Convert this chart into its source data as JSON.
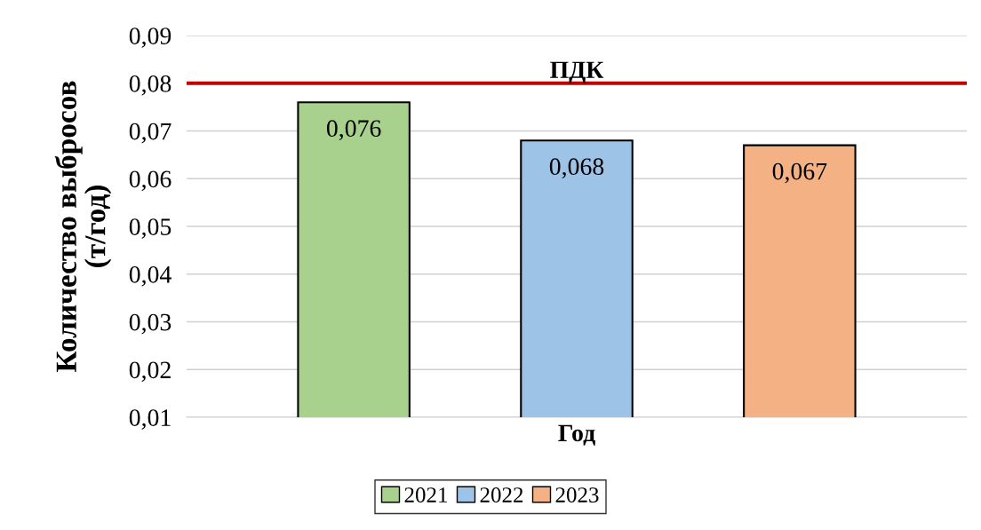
{
  "chart_data": {
    "type": "bar",
    "xlabel": "Год",
    "ylabel": "Количество выбросов\n(т/год)",
    "categories": [
      null
    ],
    "series": [
      {
        "name": "2021",
        "color": "#a9d18e",
        "values": [
          0.076
        ],
        "value_labels": [
          "0,076"
        ]
      },
      {
        "name": "2022",
        "color": "#9dc3e6",
        "values": [
          0.068
        ],
        "value_labels": [
          "0,068"
        ]
      },
      {
        "name": "2023",
        "color": "#f4b183",
        "values": [
          0.067
        ],
        "value_labels": [
          "0,067"
        ]
      }
    ],
    "ylim": [
      0.01,
      0.09
    ],
    "yticks": [
      {
        "value": 0.01,
        "label": "0,01"
      },
      {
        "value": 0.02,
        "label": "0,02"
      },
      {
        "value": 0.03,
        "label": "0,03"
      },
      {
        "value": 0.04,
        "label": "0,04"
      },
      {
        "value": 0.05,
        "label": "0,05"
      },
      {
        "value": 0.06,
        "label": "0,06"
      },
      {
        "value": 0.07,
        "label": "0,07"
      },
      {
        "value": 0.08,
        "label": "0,08"
      },
      {
        "value": 0.09,
        "label": "0,09"
      }
    ],
    "ref_lines": [
      {
        "axis": "y",
        "value": 0.08,
        "label": "ПДК",
        "color": "#c00000"
      }
    ],
    "grid": "y",
    "legend": "bottom"
  }
}
